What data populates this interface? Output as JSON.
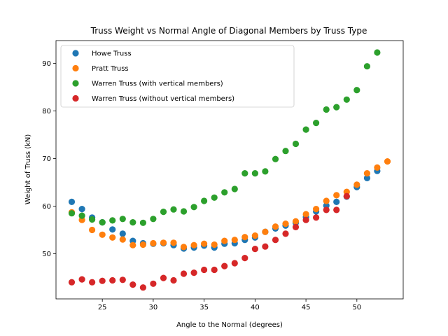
{
  "chart_data": {
    "type": "scatter",
    "title": "Truss Weight vs Normal Angle of Diagonal Members by Truss Type",
    "xlabel": "Angle to the Normal (degrees)",
    "ylabel": "Weight of Truss (kN)",
    "xlim": [
      20.45,
      54.55
    ],
    "ylim": [
      40.5,
      94.8
    ],
    "xticks": [
      25,
      30,
      35,
      40,
      45,
      50
    ],
    "yticks": [
      50,
      60,
      70,
      80,
      90
    ],
    "grid": false,
    "legend_position": "top-left",
    "series": [
      {
        "name": "Howe Truss",
        "color": "#1f77b4",
        "points": [
          [
            22,
            60.9
          ],
          [
            23,
            59.4
          ],
          [
            24,
            57.6
          ],
          [
            25,
            56.6
          ],
          [
            26,
            55.1
          ],
          [
            27,
            54.2
          ],
          [
            28,
            52.7
          ],
          [
            29,
            52.2
          ],
          [
            30,
            52.1
          ],
          [
            31,
            52.2
          ],
          [
            32,
            51.8
          ],
          [
            33,
            51.1
          ],
          [
            34,
            51.3
          ],
          [
            35,
            51.7
          ],
          [
            36,
            51.3
          ],
          [
            37,
            52.1
          ],
          [
            38,
            52.2
          ],
          [
            39,
            52.9
          ],
          [
            40,
            53.4
          ],
          [
            41,
            54.6
          ],
          [
            42,
            55.3
          ],
          [
            43,
            55.9
          ],
          [
            44,
            56.5
          ],
          [
            45,
            57.7
          ],
          [
            46,
            58.9
          ],
          [
            47,
            60.1
          ],
          [
            48,
            60.9
          ],
          [
            49,
            62.0
          ],
          [
            50,
            64.0
          ],
          [
            51,
            65.9
          ],
          [
            52,
            67.4
          ]
        ]
      },
      {
        "name": "Pratt Truss",
        "color": "#ff7f0e",
        "points": [
          [
            22,
            58.7
          ],
          [
            23,
            57.1
          ],
          [
            24,
            55.0
          ],
          [
            25,
            54.0
          ],
          [
            26,
            53.4
          ],
          [
            27,
            53.0
          ],
          [
            28,
            51.8
          ],
          [
            29,
            51.9
          ],
          [
            30,
            52.2
          ],
          [
            31,
            52.3
          ],
          [
            32,
            52.3
          ],
          [
            33,
            51.4
          ],
          [
            34,
            51.8
          ],
          [
            35,
            52.1
          ],
          [
            36,
            51.9
          ],
          [
            37,
            52.7
          ],
          [
            38,
            52.9
          ],
          [
            39,
            53.5
          ],
          [
            40,
            53.8
          ],
          [
            41,
            54.6
          ],
          [
            42,
            55.7
          ],
          [
            43,
            56.3
          ],
          [
            44,
            56.8
          ],
          [
            45,
            58.3
          ],
          [
            46,
            59.4
          ],
          [
            47,
            61.1
          ],
          [
            48,
            62.3
          ],
          [
            49,
            63.0
          ],
          [
            50,
            64.5
          ],
          [
            51,
            66.9
          ],
          [
            52,
            68.1
          ],
          [
            53,
            69.4
          ]
        ]
      },
      {
        "name": "Warren Truss (with vertical members)",
        "color": "#2ca02c",
        "points": [
          [
            22,
            58.5
          ],
          [
            23,
            58.0
          ],
          [
            24,
            57.2
          ],
          [
            25,
            56.6
          ],
          [
            26,
            57.0
          ],
          [
            27,
            57.3
          ],
          [
            28,
            56.6
          ],
          [
            29,
            56.5
          ],
          [
            30,
            57.3
          ],
          [
            31,
            58.8
          ],
          [
            32,
            59.3
          ],
          [
            33,
            58.9
          ],
          [
            34,
            59.8
          ],
          [
            35,
            61.1
          ],
          [
            36,
            61.8
          ],
          [
            37,
            62.9
          ],
          [
            38,
            63.6
          ],
          [
            39,
            66.9
          ],
          [
            40,
            66.9
          ],
          [
            41,
            67.3
          ],
          [
            42,
            69.9
          ],
          [
            43,
            71.6
          ],
          [
            44,
            73.1
          ],
          [
            45,
            76.1
          ],
          [
            46,
            77.5
          ],
          [
            47,
            80.3
          ],
          [
            48,
            80.8
          ],
          [
            49,
            82.4
          ],
          [
            50,
            84.4
          ],
          [
            51,
            89.4
          ],
          [
            52,
            92.3
          ]
        ]
      },
      {
        "name": "Warren Truss (without vertical members)",
        "color": "#d62728",
        "points": [
          [
            22,
            44.0
          ],
          [
            23,
            44.6
          ],
          [
            24,
            44.0
          ],
          [
            25,
            44.3
          ],
          [
            26,
            44.4
          ],
          [
            27,
            44.5
          ],
          [
            28,
            43.5
          ],
          [
            29,
            42.9
          ],
          [
            30,
            43.7
          ],
          [
            31,
            44.9
          ],
          [
            32,
            44.4
          ],
          [
            33,
            45.8
          ],
          [
            34,
            46.0
          ],
          [
            35,
            46.6
          ],
          [
            36,
            46.6
          ],
          [
            37,
            47.4
          ],
          [
            38,
            48.0
          ],
          [
            39,
            49.1
          ],
          [
            40,
            51.0
          ],
          [
            41,
            51.5
          ],
          [
            42,
            52.9
          ],
          [
            43,
            54.2
          ],
          [
            44,
            55.6
          ],
          [
            45,
            57.1
          ],
          [
            46,
            57.6
          ],
          [
            47,
            59.2
          ],
          [
            48,
            59.2
          ],
          [
            49,
            62.1
          ]
        ]
      }
    ]
  }
}
